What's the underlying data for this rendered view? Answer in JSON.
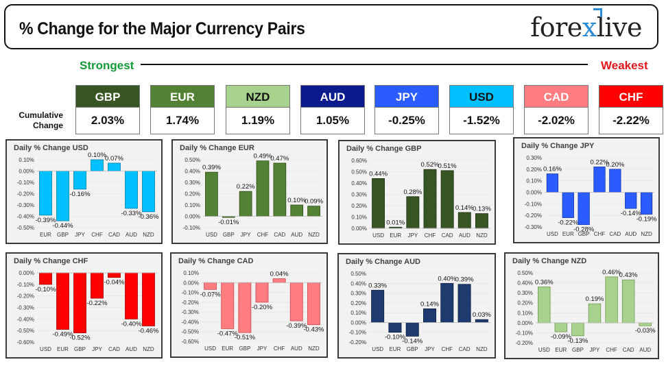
{
  "header": {
    "title": "% Change for the Major Currency Pairs",
    "logo_left": "fore",
    "logo_x": "x",
    "logo_right": "live",
    "strongest": "Strongest",
    "weakest": "Weakest",
    "cumulative_label_1": "Cumulative",
    "cumulative_label_2": "Change"
  },
  "rankings": [
    {
      "currency": "GBP",
      "change": "2.03%",
      "bg": "#375623",
      "fg": "#ffffff"
    },
    {
      "currency": "EUR",
      "change": "1.74%",
      "bg": "#548235",
      "fg": "#ffffff"
    },
    {
      "currency": "NZD",
      "change": "1.19%",
      "bg": "#a9d18e",
      "fg": "#111111"
    },
    {
      "currency": "AUD",
      "change": "1.05%",
      "bg": "#0b1a8c",
      "fg": "#ffffff"
    },
    {
      "currency": "JPY",
      "change": "-0.25%",
      "bg": "#2b5cff",
      "fg": "#ffffff"
    },
    {
      "currency": "USD",
      "change": "-1.52%",
      "bg": "#00c0ff",
      "fg": "#111111"
    },
    {
      "currency": "CAD",
      "change": "-2.02%",
      "bg": "#ff7c80",
      "fg": "#ffffff"
    },
    {
      "currency": "CHF",
      "change": "-2.22%",
      "bg": "#ff0000",
      "fg": "#ffffff"
    }
  ],
  "chart_data": [
    {
      "type": "bar",
      "title": "Daily % Change USD",
      "categories": [
        "EUR",
        "GBP",
        "JPY",
        "CHF",
        "CAD",
        "AUD",
        "NZD"
      ],
      "values": [
        -0.39,
        -0.44,
        -0.16,
        0.1,
        0.07,
        -0.33,
        -0.36
      ],
      "labels": [
        "-0.39%",
        "-0.44%",
        "-0.16%",
        "0.10%",
        "0.07%",
        "-0.33%",
        "-0.36%"
      ],
      "ylim": [
        -0.5,
        0.1
      ],
      "yticks": [
        -0.5,
        -0.4,
        -0.3,
        -0.2,
        -0.1,
        0.0,
        0.1
      ],
      "ytick_labels": [
        "-0.50%",
        "-0.40%",
        "-0.30%",
        "-0.20%",
        "-0.10%",
        "0.00%",
        "0.10%"
      ],
      "color": "#00c0ff",
      "dark": "#007ea8"
    },
    {
      "type": "bar",
      "title": "Daily % Change EUR",
      "categories": [
        "USD",
        "GBP",
        "JPY",
        "CHF",
        "CAD",
        "AUD",
        "NZD"
      ],
      "values": [
        0.39,
        -0.01,
        0.22,
        0.49,
        0.47,
        0.1,
        0.09
      ],
      "labels": [
        "0.39%",
        "-0.01%",
        "0.22%",
        "0.49%",
        "0.47%",
        "0.10%",
        "0.09%"
      ],
      "ylim": [
        -0.1,
        0.5
      ],
      "yticks": [
        -0.1,
        0.0,
        0.1,
        0.2,
        0.3,
        0.4,
        0.5
      ],
      "ytick_labels": [
        "-0.10%",
        "0.00%",
        "0.10%",
        "0.20%",
        "0.30%",
        "0.40%",
        "0.50%"
      ],
      "color": "#548235",
      "dark": "#2e4a1b"
    },
    {
      "type": "bar",
      "title": "Daily % Change GBP",
      "categories": [
        "USD",
        "EUR",
        "JPY",
        "CHF",
        "CAD",
        "AUD",
        "NZD"
      ],
      "values": [
        0.44,
        0.01,
        0.28,
        0.52,
        0.51,
        0.14,
        0.13
      ],
      "labels": [
        "0.44%",
        "0.01%",
        "0.28%",
        "0.52%",
        "0.51%",
        "0.14%",
        "0.13%"
      ],
      "ylim": [
        0.0,
        0.6
      ],
      "yticks": [
        0.0,
        0.1,
        0.2,
        0.3,
        0.4,
        0.5,
        0.6
      ],
      "ytick_labels": [
        "0.00%",
        "0.10%",
        "0.20%",
        "0.30%",
        "0.40%",
        "0.50%",
        "0.60%"
      ],
      "color": "#375623",
      "dark": "#1e3012"
    },
    {
      "type": "bar",
      "title": "Daily % Change JPY",
      "categories": [
        "USD",
        "EUR",
        "GBP",
        "CHF",
        "CAD",
        "AUD",
        "NZD"
      ],
      "values": [
        0.16,
        -0.22,
        -0.28,
        0.22,
        0.2,
        -0.14,
        -0.19
      ],
      "labels": [
        "0.16%",
        "-0.22%",
        "-0.28%",
        "0.22%",
        "0.20%",
        "-0.14%",
        "-0.19%"
      ],
      "ylim": [
        -0.3,
        0.3
      ],
      "yticks": [
        -0.3,
        -0.2,
        -0.1,
        0.0,
        0.1,
        0.2,
        0.3
      ],
      "ytick_labels": [
        "-0.30%",
        "-0.20%",
        "-0.10%",
        "0.00%",
        "0.10%",
        "0.20%",
        "0.30%"
      ],
      "color": "#2b5cff",
      "dark": "#1333a8"
    },
    {
      "type": "bar",
      "title": "Daily % Change CHF",
      "categories": [
        "USD",
        "EUR",
        "GBP",
        "JPY",
        "CAD",
        "AUD",
        "NZD"
      ],
      "values": [
        -0.1,
        -0.49,
        -0.52,
        -0.22,
        -0.04,
        -0.4,
        -0.46
      ],
      "labels": [
        "-0.10%",
        "-0.49%",
        "-0.52%",
        "-0.22%",
        "-0.04%",
        "-0.40%",
        "-0.46%"
      ],
      "ylim": [
        -0.6,
        0.0
      ],
      "yticks": [
        -0.6,
        -0.5,
        -0.4,
        -0.3,
        -0.2,
        -0.1,
        0.0
      ],
      "ytick_labels": [
        "-0.60%",
        "-0.50%",
        "-0.40%",
        "-0.30%",
        "-0.20%",
        "-0.10%",
        "0.00%"
      ],
      "color": "#ff0000",
      "dark": "#a00000"
    },
    {
      "type": "bar",
      "title": "Daily % Change CAD",
      "categories": [
        "USD",
        "EUR",
        "GBP",
        "JPY",
        "CHF",
        "AUD",
        "NZD"
      ],
      "values": [
        -0.07,
        -0.47,
        -0.51,
        -0.2,
        0.04,
        -0.39,
        -0.43
      ],
      "labels": [
        "-0.07%",
        "-0.47%",
        "-0.51%",
        "-0.20%",
        "0.04%",
        "-0.39%",
        "-0.43%"
      ],
      "ylim": [
        -0.6,
        0.1
      ],
      "yticks": [
        -0.6,
        -0.5,
        -0.4,
        -0.3,
        -0.2,
        -0.1,
        0.0,
        0.1
      ],
      "ytick_labels": [
        "-0.60%",
        "-0.50%",
        "-0.40%",
        "-0.30%",
        "-0.20%",
        "-0.10%",
        "0.00%",
        "0.10%"
      ],
      "color": "#ff7c80",
      "dark": "#c94a4f"
    },
    {
      "type": "bar",
      "title": "Daily % Change AUD",
      "categories": [
        "USD",
        "EUR",
        "GBP",
        "JPY",
        "CHF",
        "CAD",
        "NZD"
      ],
      "values": [
        0.33,
        -0.1,
        -0.14,
        0.14,
        0.4,
        0.39,
        0.03
      ],
      "labels": [
        "0.33%",
        "-0.10%",
        "-0.14%",
        "0.14%",
        "0.40%",
        "0.39%",
        "0.03%"
      ],
      "ylim": [
        -0.2,
        0.5
      ],
      "yticks": [
        -0.2,
        -0.1,
        0.0,
        0.1,
        0.2,
        0.3,
        0.4,
        0.5
      ],
      "ytick_labels": [
        "-0.20%",
        "-0.10%",
        "0.00%",
        "0.10%",
        "0.20%",
        "0.30%",
        "0.40%",
        "0.50%"
      ],
      "color": "#1f3a6e",
      "dark": "#0e1f40"
    },
    {
      "type": "bar",
      "title": "Daily % Change NZD",
      "categories": [
        "USD",
        "EUR",
        "GBP",
        "JPY",
        "CHF",
        "CAD",
        "AUD"
      ],
      "values": [
        0.36,
        -0.09,
        -0.13,
        0.19,
        0.46,
        0.43,
        -0.03
      ],
      "labels": [
        "0.36%",
        "-0.09%",
        "-0.13%",
        "0.19%",
        "0.46%",
        "0.43%",
        "-0.03%"
      ],
      "ylim": [
        -0.2,
        0.5
      ],
      "yticks": [
        -0.2,
        -0.1,
        0.0,
        0.1,
        0.2,
        0.3,
        0.4,
        0.5
      ],
      "ytick_labels": [
        "-0.20%",
        "-0.10%",
        "0.00%",
        "0.10%",
        "0.20%",
        "0.30%",
        "0.40%",
        "0.50%"
      ],
      "color": "#a9d18e",
      "dark": "#6f9a52"
    }
  ]
}
